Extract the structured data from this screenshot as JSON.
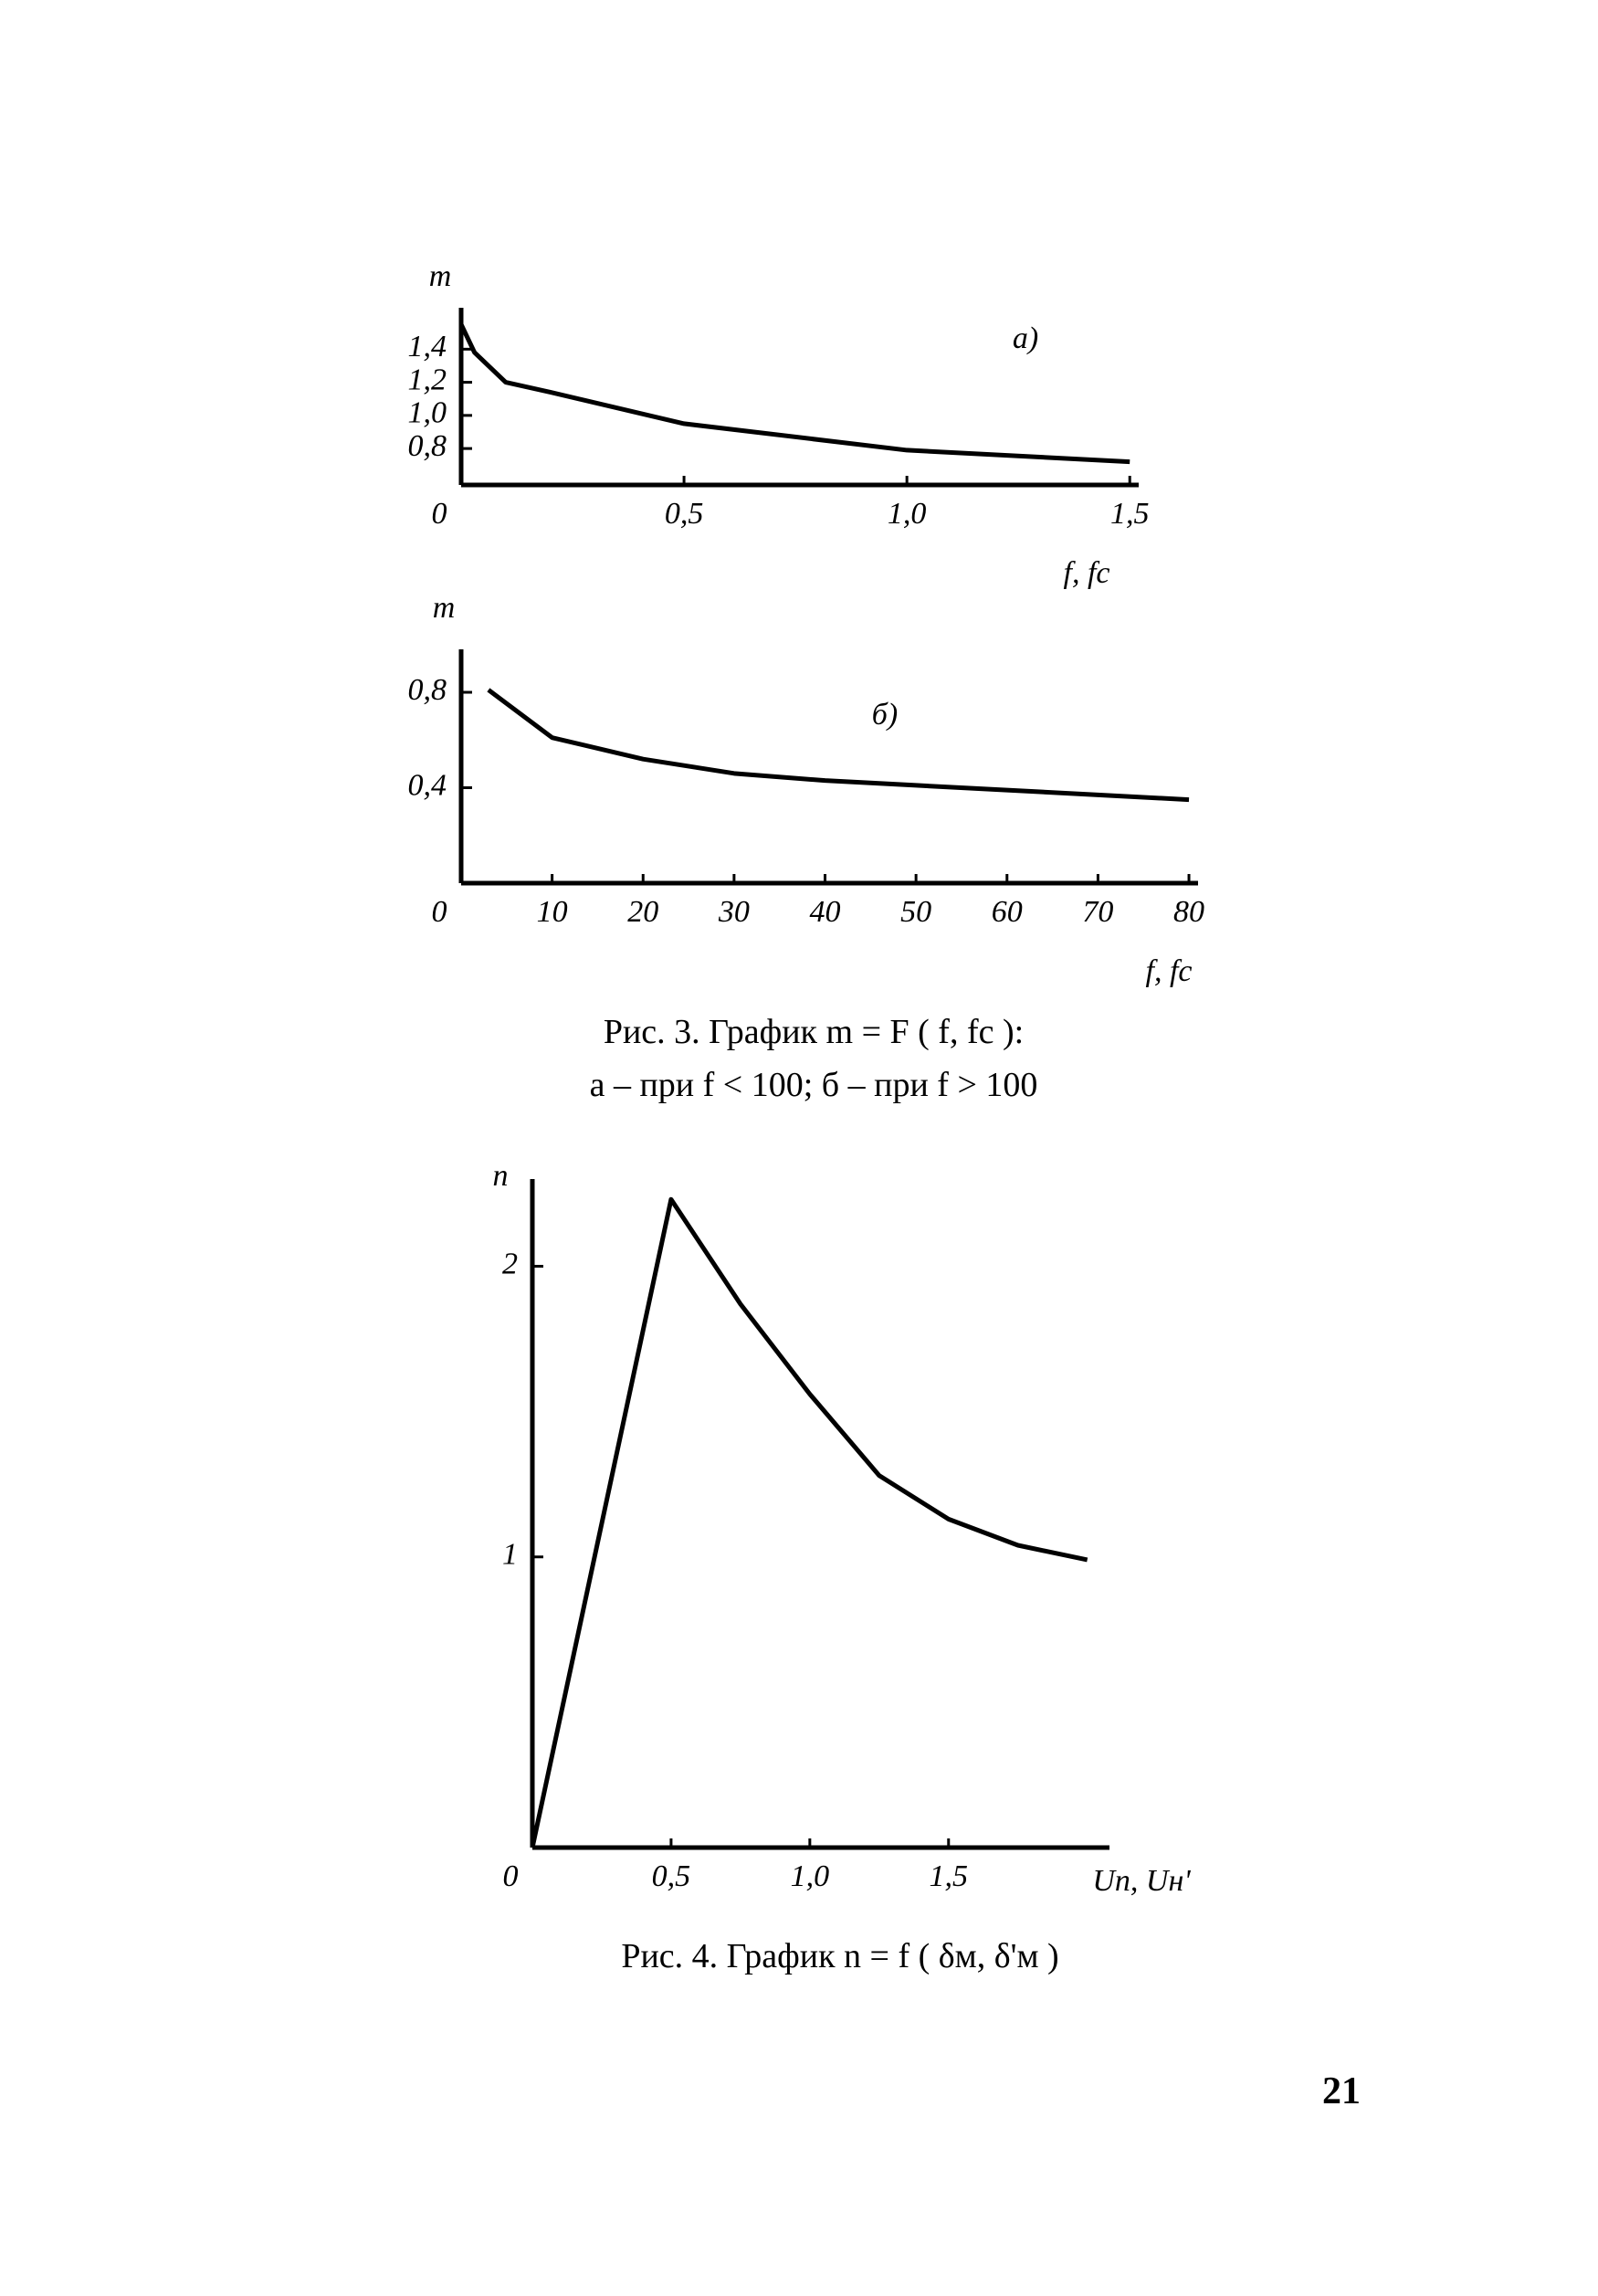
{
  "chart_data": [
    {
      "type": "line",
      "annotation": "а)",
      "y_label": "m",
      "x_label": "f, fc",
      "x": [
        0,
        0.03,
        0.1,
        0.2,
        0.5,
        1.0,
        1.5
      ],
      "values": [
        1.55,
        1.38,
        1.2,
        1.14,
        0.95,
        0.79,
        0.72
      ],
      "color": "#000000",
      "xlim": [
        0,
        1.52
      ],
      "ylim": [
        0.58,
        1.65
      ],
      "xticks": [
        0,
        {
          "value": 0.5,
          "label": "0,5"
        },
        {
          "value": 1.0,
          "label": "1,0"
        },
        {
          "value": 1.5,
          "label": "1,5"
        }
      ],
      "yticks": [
        {
          "value": 0.8,
          "label": "0,8"
        },
        {
          "value": 1.0,
          "label": "1,0"
        },
        {
          "value": 1.2,
          "label": "1,2"
        },
        {
          "value": 1.4,
          "label": "1,4"
        }
      ]
    },
    {
      "type": "line",
      "annotation": "б)",
      "y_label": "m",
      "x_label": "f, fc",
      "x": [
        3,
        10,
        20,
        30,
        40,
        50,
        60,
        70,
        80
      ],
      "values": [
        0.81,
        0.61,
        0.52,
        0.46,
        0.43,
        0.41,
        0.39,
        0.37,
        0.35
      ],
      "color": "#000000",
      "xlim": [
        0,
        81
      ],
      "ylim": [
        0,
        0.98
      ],
      "xticks": [
        0,
        10,
        20,
        30,
        40,
        50,
        60,
        70,
        80
      ],
      "yticks": [
        {
          "value": 0.4,
          "label": "0,4"
        },
        {
          "value": 0.8,
          "label": "0,8"
        }
      ]
    },
    {
      "type": "line",
      "y_label": "n",
      "x_label": "Uп, Uн'",
      "x": [
        0,
        0.5,
        0.75,
        1.0,
        1.25,
        1.5,
        1.75,
        2.0
      ],
      "values": [
        0,
        2.23,
        1.87,
        1.56,
        1.28,
        1.13,
        1.04,
        0.99
      ],
      "color": "#000000",
      "xlim": [
        0,
        2.08
      ],
      "ylim": [
        0,
        2.3
      ],
      "xticks": [
        0,
        {
          "value": 0.5,
          "label": "0,5"
        },
        {
          "value": 1.0,
          "label": "1,0"
        },
        {
          "value": 1.5,
          "label": "1,5"
        }
      ],
      "yticks": [
        1,
        2
      ]
    }
  ],
  "captions": {
    "figure3_line1": "Рис. 3. График m = F ( f, fc ):",
    "figure3_line2": "а – при f < 100; б – при f > 100",
    "figure4": "Рис. 4. График n = f ( δм, δ'м )"
  },
  "page_number": "21"
}
